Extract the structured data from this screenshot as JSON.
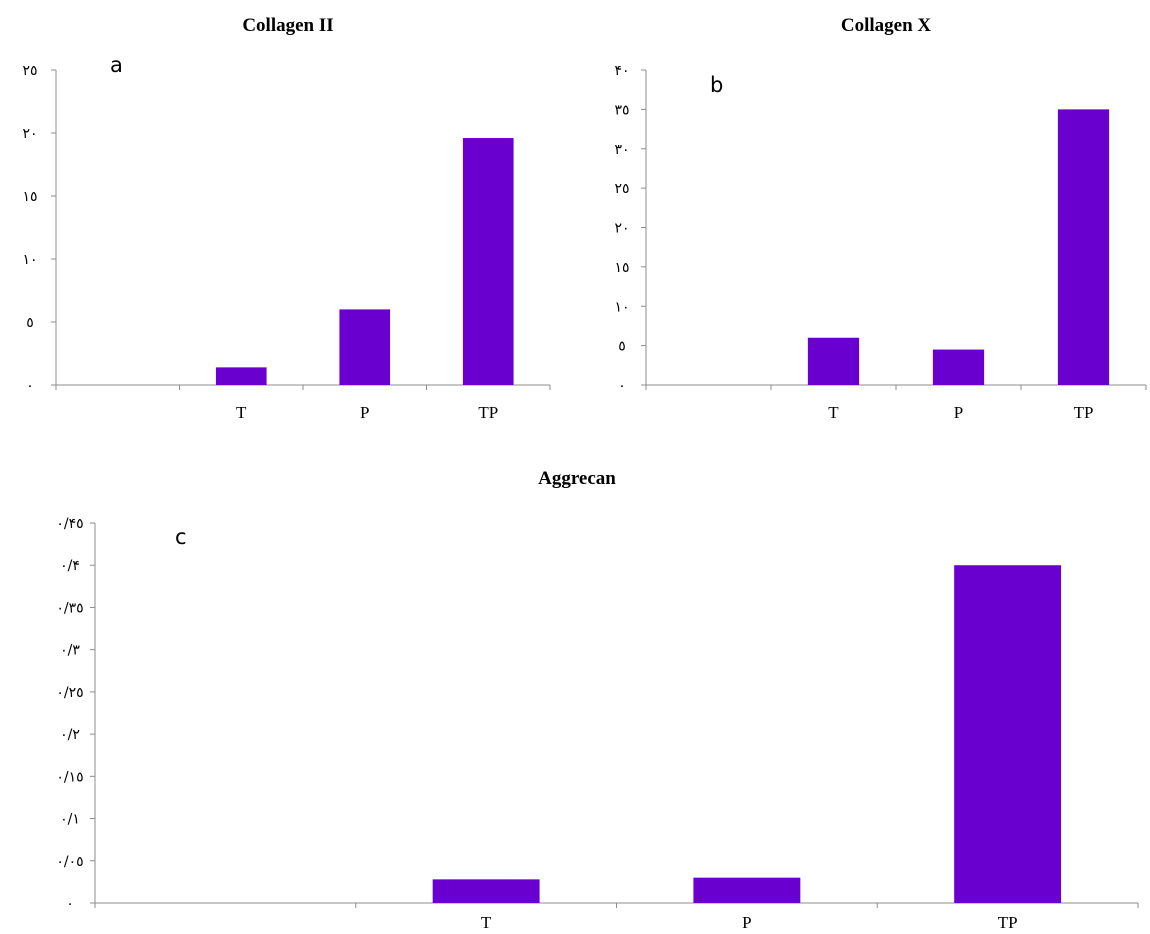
{
  "chart_data": [
    {
      "id": "a",
      "type": "bar",
      "title": "Collagen II",
      "panel_label": "a",
      "categories": [
        "",
        "T",
        "P",
        "TP"
      ],
      "values": [
        0,
        1.4,
        6.0,
        19.6
      ],
      "ylim": [
        0,
        25
      ],
      "yticks": [
        0,
        5,
        10,
        15,
        20,
        25
      ],
      "ytick_labels": [
        "٠",
        "٥",
        "١٠",
        "١٥",
        "٢٠",
        "٢٥"
      ],
      "xlabel": "",
      "ylabel": "",
      "bar_color": "#6a00d0",
      "grid": false,
      "legend": "none"
    },
    {
      "id": "b",
      "type": "bar",
      "title": "Collagen X",
      "panel_label": "b",
      "categories": [
        "",
        "T",
        "P",
        "TP"
      ],
      "values": [
        0,
        6.0,
        4.5,
        35.0
      ],
      "ylim": [
        0,
        40
      ],
      "yticks": [
        0,
        5,
        10,
        15,
        20,
        25,
        30,
        35,
        40
      ],
      "ytick_labels": [
        "٠",
        "٥",
        "١٠",
        "١٥",
        "٢٠",
        "٢٥",
        "٣٠",
        "٣٥",
        "۴٠"
      ],
      "xlabel": "",
      "ylabel": "",
      "bar_color": "#6a00d0",
      "grid": false,
      "legend": "none"
    },
    {
      "id": "c",
      "type": "bar",
      "title": "Aggrecan",
      "panel_label": "c",
      "categories": [
        "",
        "T",
        "P",
        "TP"
      ],
      "values": [
        0,
        0.028,
        0.03,
        0.4
      ],
      "ylim": [
        0,
        0.45
      ],
      "yticks": [
        0,
        0.05,
        0.1,
        0.15,
        0.2,
        0.25,
        0.3,
        0.35,
        0.4,
        0.45
      ],
      "ytick_labels": [
        "٠",
        "٠/٠٥",
        "٠/١",
        "٠/١٥",
        "٠/٢",
        "٠/٢٥",
        "٠/٣",
        "٠/٣٥",
        "٠/۴",
        "٠/۴٥"
      ],
      "xlabel": "",
      "ylabel": "",
      "bar_color": "#6a00d0",
      "grid": false,
      "legend": "none"
    }
  ]
}
